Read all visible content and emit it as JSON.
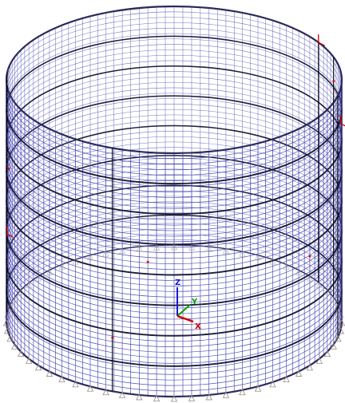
{
  "model": {
    "meridian_count": 120,
    "hoop_count": 44,
    "ring_beam_count": 8,
    "support_count": 60
  },
  "colors": {
    "mesh": "#4a4ab4",
    "rim": "#2b2b5e",
    "ring_beam": "#1e1e3c",
    "column": "#000000",
    "local_axis": "#d00000",
    "support": "#9a8a80",
    "axis_x": "#cc0000",
    "axis_y": "#00a000",
    "axis_z": "#1a1acc",
    "background": "#ffffff"
  },
  "axes": {
    "x_label": "X",
    "y_label": "Y",
    "z_label": "Z"
  }
}
